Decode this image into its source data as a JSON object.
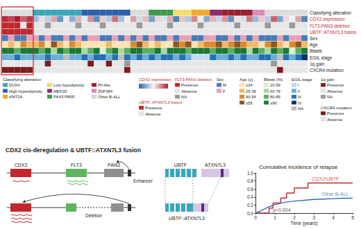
{
  "heatmap": {
    "rows": [
      {
        "label": "Classifying alteration",
        "legend_title": "Classifying alteration",
        "levels": [
          "DUX4",
          "High hyperdiploidy",
          "KMT2A",
          "Low hypodiploidy",
          "MEF2D",
          "PAX5 P80R",
          "Ph-like",
          "ZNF384",
          "Other B-ALL"
        ],
        "colors": [
          "#3aa6b9",
          "#2f5fa8",
          "#f0a830",
          "#f3dc73",
          "#8a2d6a",
          "#3f9a4a",
          "#9b1f2e",
          "#d98ab8",
          "#dcdcdc"
        ],
        "values": [
          8,
          8,
          8,
          8,
          8,
          0,
          0,
          0,
          0,
          0,
          0,
          0,
          0,
          1,
          1,
          1,
          1,
          1,
          1,
          1,
          1,
          8,
          8,
          8,
          5,
          5,
          5,
          5,
          3,
          3,
          3,
          2,
          2,
          2,
          4,
          4,
          6,
          6,
          6,
          6,
          6,
          7,
          7,
          8,
          8,
          8,
          8,
          8,
          8,
          8
        ]
      },
      {
        "label": "CDX2 expression",
        "legend_title": "CDX2 expression",
        "highlight": true,
        "range": [
          -3,
          3
        ],
        "colors": [
          "#2166ac",
          "#f7f7f7",
          "#b2182b"
        ],
        "values": [
          2.8,
          2.4,
          3.0,
          2.1,
          2.6,
          -1.2,
          0.4,
          -0.8,
          1.1,
          -2.0,
          0.2,
          -1.5,
          0.9,
          -0.3,
          1.4,
          -2.2,
          0.6,
          -0.9,
          1.8,
          -1.1,
          0.1,
          1.2,
          -0.6,
          0.8,
          -1.8,
          0.5,
          -0.4,
          1.0,
          -2.4,
          0.7,
          -1.0,
          1.5,
          -0.2,
          -1.6,
          0.9,
          -0.7,
          1.3,
          -2.1,
          0.3,
          -0.5,
          1.7,
          -1.3,
          0.6,
          -0.9,
          2.0,
          -1.7,
          0.4,
          -0.1,
          1.1,
          -2.3
        ]
      },
      {
        "label": "FLT3-PAN3 deletion",
        "legend_title": "FLT3-PAN3 deletion",
        "highlight": true,
        "levels": [
          "Presence",
          "Absence",
          "NA"
        ],
        "colors": [
          "#c0282d",
          "#e6e6e6",
          "#9a9a9a"
        ],
        "values": [
          0,
          0,
          0,
          1,
          0,
          1,
          1,
          2,
          1,
          1,
          1,
          1,
          2,
          1,
          1,
          1,
          2,
          1,
          1,
          1,
          1,
          1,
          2,
          1,
          1,
          1,
          1,
          2,
          1,
          1,
          1,
          1,
          2,
          1,
          1,
          1,
          1,
          1,
          2,
          1,
          1,
          1,
          1,
          2,
          1,
          1,
          1,
          2,
          1,
          1
        ]
      },
      {
        "label": "UBTF::ATXN7L3 fusion",
        "legend_title": "UBTF::ATXN7L3 fusion",
        "highlight": true,
        "levels": [
          "Presence",
          "Absence"
        ],
        "colors": [
          "#c0282d",
          "#e6e6e6"
        ],
        "values": [
          0,
          0,
          0,
          0,
          0,
          1,
          1,
          1,
          1,
          1,
          1,
          1,
          1,
          1,
          1,
          1,
          1,
          1,
          1,
          1,
          1,
          1,
          1,
          1,
          1,
          1,
          1,
          1,
          1,
          1,
          1,
          1,
          1,
          1,
          1,
          1,
          1,
          1,
          1,
          1,
          1,
          1,
          1,
          1,
          1,
          1,
          1,
          1,
          1,
          1
        ]
      },
      {
        "label": "Sex",
        "legend_title": "Sex",
        "levels": [
          "M",
          "F"
        ],
        "colors": [
          "#4a7bb7",
          "#e8a0b4"
        ],
        "values": [
          0,
          1,
          0,
          0,
          1,
          1,
          0,
          1,
          0,
          0,
          1,
          0,
          1,
          0,
          1,
          1,
          0,
          0,
          1,
          0,
          1,
          0,
          1,
          0,
          1,
          0,
          0,
          1,
          0,
          1,
          1,
          0,
          0,
          1,
          1,
          0,
          0,
          1,
          0,
          1,
          0,
          1,
          0,
          0,
          0,
          1,
          0,
          1,
          1,
          0
        ]
      },
      {
        "label": "Age",
        "legend_title": "Age (y)",
        "levels": [
          "≤24",
          "25-39",
          "40-54",
          "≥55"
        ],
        "colors": [
          "#fde3b0",
          "#f5b867",
          "#d98b2b",
          "#8c5a1c"
        ],
        "values": [
          0,
          1,
          0,
          2,
          1,
          1,
          2,
          0,
          3,
          1,
          0,
          2,
          1,
          0,
          0,
          0,
          0,
          1,
          0,
          0,
          0,
          2,
          3,
          1,
          0,
          1,
          0,
          0,
          3,
          2,
          3,
          0,
          1,
          2,
          2,
          3,
          1,
          2,
          3,
          2,
          1,
          1,
          0,
          2,
          3,
          1,
          0,
          2,
          3,
          1
        ]
      },
      {
        "label": "Blasts",
        "legend_title": "Blasts (%)",
        "levels": [
          "20-59",
          "60-79",
          "80-89",
          "≥90"
        ],
        "colors": [
          "#d9f0d3",
          "#a6dba0",
          "#5aae61",
          "#1b7837"
        ],
        "values": [
          3,
          3,
          2,
          3,
          3,
          3,
          2,
          3,
          1,
          3,
          2,
          3,
          3,
          1,
          2,
          3,
          0,
          2,
          3,
          1,
          2,
          3,
          3,
          2,
          2,
          3,
          1,
          3,
          3,
          3,
          2,
          3,
          3,
          3,
          2,
          3,
          3,
          2,
          3,
          3,
          1,
          3,
          2,
          1,
          3,
          2,
          3,
          0,
          2,
          3
        ]
      },
      {
        "label": "EGIL stage",
        "legend_title": "EGIL stage",
        "levels": [
          "I",
          "II",
          "III",
          "IV",
          "NA"
        ],
        "colors": [
          "#c6dbef",
          "#6baed6",
          "#2171b5",
          "#08306b",
          "#bdbdbd"
        ],
        "values": [
          1,
          1,
          2,
          1,
          1,
          1,
          1,
          2,
          1,
          1,
          4,
          1,
          1,
          2,
          1,
          2,
          2,
          1,
          2,
          4,
          2,
          1,
          2,
          1,
          2,
          1,
          2,
          2,
          1,
          2,
          1,
          0,
          0,
          0,
          2,
          1,
          1,
          2,
          1,
          2,
          1,
          1,
          2,
          2,
          1,
          4,
          2,
          1,
          2,
          3
        ]
      },
      {
        "label": "1q gain",
        "legend_title": "1q gain",
        "levels": [
          "Presence",
          "Absence",
          "NA"
        ],
        "colors": [
          "#7b1c1c",
          "#e6e6e6",
          "#9a9a9a"
        ],
        "values": [
          1,
          1,
          1,
          1,
          1,
          1,
          1,
          0,
          1,
          1,
          1,
          1,
          1,
          1,
          0,
          1,
          1,
          0,
          1,
          1,
          2,
          1,
          1,
          1,
          1,
          1,
          1,
          1,
          1,
          1,
          1,
          1,
          1,
          1,
          1,
          1,
          1,
          1,
          1,
          1,
          1,
          1,
          1,
          1,
          2,
          1,
          1,
          1,
          1,
          1
        ]
      },
      {
        "label": "CXCR4 mutation",
        "legend_title": "CXCR4 mutation",
        "levels": [
          "Presence",
          "Absence"
        ],
        "colors": [
          "#7b1c1c",
          "#e6e6e6"
        ],
        "values": [
          0,
          0,
          0,
          0,
          0,
          1,
          1,
          1,
          1,
          1,
          1,
          1,
          1,
          1,
          1,
          1,
          1,
          1,
          1,
          1,
          0,
          1,
          1,
          1,
          1,
          1,
          1,
          1,
          1,
          1,
          1,
          1,
          1,
          1,
          1,
          1,
          1,
          1,
          1,
          1,
          1,
          1,
          1,
          1,
          1,
          0,
          1,
          1,
          1,
          1
        ]
      }
    ]
  },
  "diagram": {
    "title": "CDX2 cis-deregulation & UBTF::ATXN7L3 fusion",
    "genes": [
      "CDX2",
      "FLT3",
      "PAN3"
    ],
    "enhancer": "Enhancer",
    "deletion": "Deletion",
    "fusion": {
      "partners": [
        "UBTF",
        "ATXN7L3"
      ],
      "product": "UBTF::ATXN7L3"
    }
  },
  "chart_data": {
    "type": "line",
    "title": "Cumulative incidence of relapse",
    "xlabel": "Time (years)",
    "xlim": [
      0,
      5
    ],
    "xticks": [
      0,
      1,
      2,
      3,
      4,
      5
    ],
    "ylim": [
      0,
      1
    ],
    "yticks": [
      {
        "value": 0,
        "label": "0.0"
      },
      {
        "value": 0.2,
        "label": "0.2"
      },
      {
        "value": 0.4,
        "label": "0.4"
      },
      {
        "value": 0.6,
        "label": "0.6"
      },
      {
        "value": 0.8,
        "label": "0.8"
      },
      {
        "value": 1,
        "label": "1.0"
      }
    ],
    "grid": false,
    "series": [
      {
        "type": "step",
        "color": "#c0282d",
        "x": [
          0,
          0.7,
          0.9,
          1.3,
          1.6,
          2.0,
          2.7,
          5
        ],
        "values": [
          0,
          0.125,
          0.25,
          0.375,
          0.5,
          0.625,
          0.75,
          0.75
        ]
      },
      {
        "type": "line",
        "color": "#2e6db4",
        "x": [
          0,
          0.25,
          0.5,
          0.75,
          1,
          1.5,
          2,
          2.5,
          3,
          3.5,
          4,
          4.5,
          5
        ],
        "values": [
          0,
          0.05,
          0.11,
          0.17,
          0.21,
          0.27,
          0.3,
          0.32,
          0.34,
          0.35,
          0.36,
          0.37,
          0.37
        ]
      }
    ],
    "annotations": [
      {
        "text": "CDX2/UBTF",
        "x": 3.6,
        "y": 0.86,
        "color": "#c0282d"
      },
      {
        "text": "Other B-ALL",
        "x": 4.1,
        "y": 0.48,
        "color": "#2e6db4"
      },
      {
        "text": "p=0.004",
        "x": 1.35,
        "y": 0.07,
        "color": "#222222"
      }
    ]
  }
}
